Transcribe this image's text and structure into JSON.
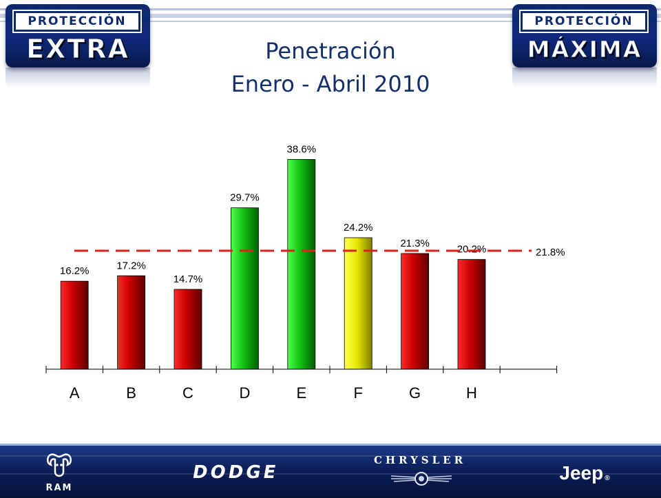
{
  "header": {
    "logo_left": {
      "top": "PROTECCIÓN",
      "word": "EXTRA"
    },
    "logo_right": {
      "top": "PROTECCIÓN",
      "word": "MÁXIMA"
    },
    "title_line1": "Penetración",
    "title_line2": "Enero - Abril 2010"
  },
  "chart_data": {
    "type": "bar",
    "title": "",
    "xlabel": "",
    "ylabel": "",
    "categories": [
      "A",
      "B",
      "C",
      "D",
      "E",
      "F",
      "G",
      "H"
    ],
    "values": [
      16.2,
      17.2,
      14.7,
      29.7,
      38.6,
      24.2,
      21.3,
      20.2
    ],
    "value_labels": [
      "16.2%",
      "17.2%",
      "14.7%",
      "29.7%",
      "38.6%",
      "24.2%",
      "21.3%",
      "20.2%"
    ],
    "bar_colors": [
      "red",
      "red",
      "red",
      "green",
      "green",
      "yellow",
      "red",
      "red"
    ],
    "ylim": [
      0,
      40
    ],
    "grid": false,
    "reference_line": {
      "value": 21.8,
      "label": "21.8%",
      "style": "dashed",
      "color": "#e0201c"
    }
  },
  "colors": {
    "red": [
      "#ff1a1a",
      "#c80000",
      "#6e0000"
    ],
    "green": [
      "#3dff3d",
      "#10c010",
      "#046b04"
    ],
    "yellow": [
      "#ffff3a",
      "#e6e600",
      "#8a8a00"
    ],
    "title": "#14306b",
    "navy": "#0d2a6e"
  },
  "footer": {
    "brands": {
      "ram": "RAM",
      "dodge": "DODGE",
      "chrysler": "CHRYSLER",
      "jeep": "Jeep",
      "jeep_mark": "®"
    }
  }
}
